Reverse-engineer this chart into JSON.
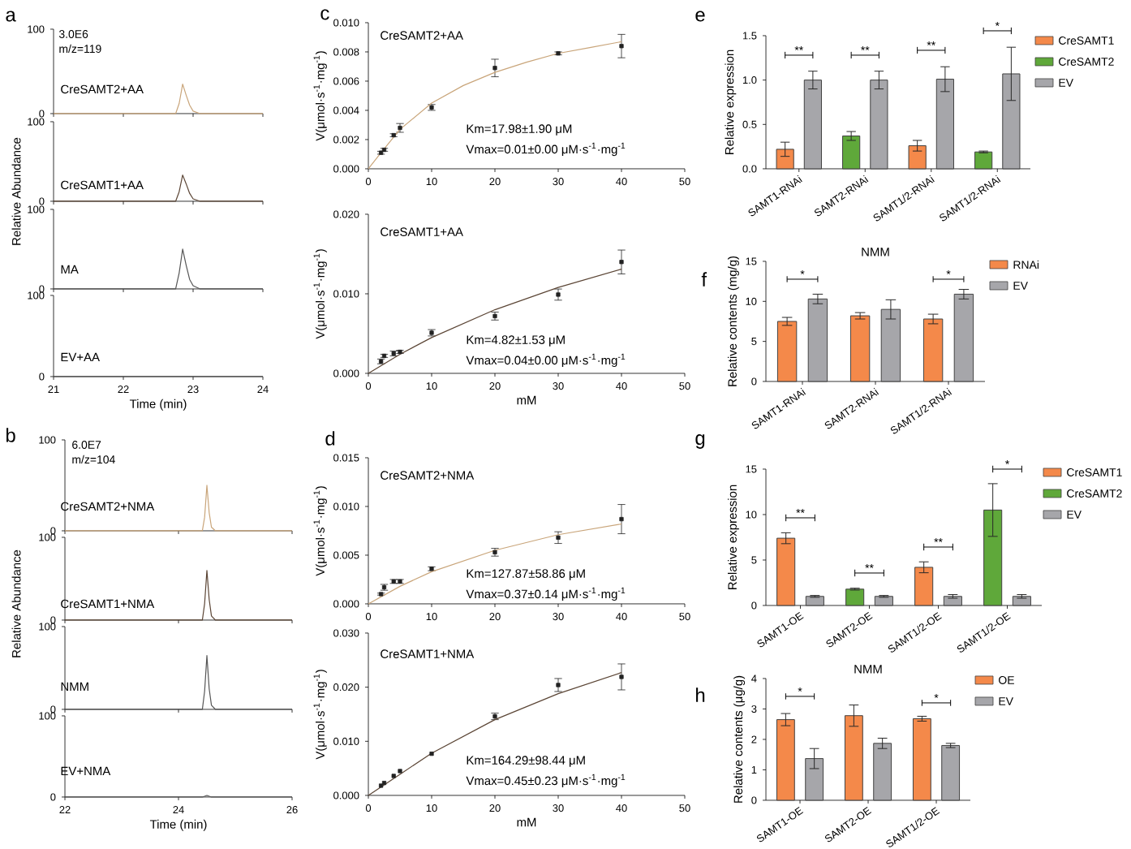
{
  "chart_data": [
    {
      "type": "line",
      "xlim": [
        21,
        24
      ],
      "xticks": [
        21,
        22,
        23,
        24
      ],
      "ylim": [
        0,
        100
      ],
      "yticks": [
        0,
        100
      ],
      "tick_labels": "y",
      "annotations": [
        "a",
        "3.0E6",
        "m/z=119",
        "CreSAMT2+AA"
      ],
      "series": [
        {
          "color": "#c9a57a",
          "x": [
            21,
            22.75,
            22.8,
            22.85,
            22.9,
            22.95,
            23.0,
            23.1,
            24
          ],
          "values": [
            0,
            0,
            12,
            35,
            22,
            10,
            3,
            0,
            0
          ]
        }
      ]
    },
    {
      "type": "line",
      "xlim": [
        21,
        24
      ],
      "xticks": [
        21,
        22,
        23,
        24
      ],
      "ylim": [
        0,
        100
      ],
      "yticks": [
        0,
        100
      ],
      "tick_labels": "y",
      "ylabel": "Relative Abundance",
      "annotations": [
        "CreSAMT1+AA"
      ],
      "series": [
        {
          "color": "#5b4535",
          "x": [
            21,
            22.75,
            22.8,
            22.85,
            22.9,
            22.95,
            23.0,
            23.1,
            24
          ],
          "values": [
            0,
            0,
            12,
            33,
            22,
            10,
            3,
            0,
            0
          ]
        }
      ]
    },
    {
      "type": "line",
      "xlim": [
        21,
        24
      ],
      "xticks": [
        21,
        22,
        23,
        24
      ],
      "ylim": [
        0,
        100
      ],
      "yticks": [
        0,
        100
      ],
      "tick_labels": "y",
      "annotations": [
        "MA"
      ],
      "series": [
        {
          "color": "#555555",
          "x": [
            21,
            22.75,
            22.8,
            22.85,
            22.9,
            22.95,
            23.0,
            23.1,
            24
          ],
          "values": [
            0,
            0,
            20,
            50,
            30,
            12,
            4,
            0,
            0
          ]
        }
      ]
    },
    {
      "type": "line",
      "xlim": [
        21,
        24
      ],
      "xticks": [
        21,
        22,
        23,
        24
      ],
      "ylim": [
        0,
        100
      ],
      "yticks": [
        0,
        100
      ],
      "xlabel": "Time (min)",
      "annotations": [
        "EV+AA"
      ],
      "series": [
        {
          "color": "#555555",
          "x": [
            21,
            22.5,
            24
          ],
          "values": [
            0,
            0,
            0
          ]
        }
      ]
    },
    {
      "type": "scatter",
      "title": "CreSAMT2+AA",
      "ylabel": "V(μmol·s$^{-1}$·mg$^{-1}$)",
      "xlim": [
        0,
        50
      ],
      "xticks": [
        0,
        10,
        20,
        30,
        40,
        50
      ],
      "ylim": [
        0,
        0.01
      ],
      "yticks": [
        {
          "value": 0,
          "label": "0.000"
        },
        {
          "value": 0.002,
          "label": "0.002"
        },
        {
          "value": 0.004,
          "label": "0.004"
        },
        {
          "value": 0.006,
          "label": "0.006"
        },
        {
          "value": 0.008,
          "label": "0.008"
        },
        {
          "value": 0.01,
          "label": "0.010"
        }
      ],
      "annotations": [
        "c",
        "Km=17.98±1.90 μM",
        "Vmax=0.01±0.00 μM·s$^{-1}$·mg$^{-1}$"
      ],
      "series": [
        {
          "type": "scatter",
          "marker": "square",
          "color": "#222222",
          "x": [
            2,
            2.5,
            4,
            5,
            10,
            20,
            30,
            40
          ],
          "values": [
            0.0011,
            0.0013,
            0.0023,
            0.0028,
            0.0042,
            0.0069,
            0.0079,
            0.0084
          ],
          "errors": [
            0.0001,
            0.0001,
            0.0001,
            0.0003,
            0.0002,
            0.0006,
            0.0001,
            0.0008
          ]
        },
        {
          "type": "line",
          "color": "#c9a57a",
          "x": [
            0,
            2,
            5,
            10,
            15,
            20,
            25,
            30,
            35,
            40
          ],
          "values": [
            0,
            0.0011,
            0.0027,
            0.0045,
            0.0057,
            0.0066,
            0.0073,
            0.0079,
            0.0083,
            0.0087
          ]
        }
      ]
    },
    {
      "type": "scatter",
      "title": "CreSAMT1+AA",
      "ylabel": "V(μmol·s$^{-1}$·mg$^{-1}$)",
      "xlabel": "mM",
      "xlim": [
        0,
        50
      ],
      "xticks": [
        0,
        10,
        20,
        30,
        40,
        50
      ],
      "ylim": [
        0,
        0.02
      ],
      "yticks": [
        {
          "value": 0,
          "label": "0.000"
        },
        {
          "value": 0.01,
          "label": "0.010"
        },
        {
          "value": 0.02,
          "label": "0.020"
        }
      ],
      "annotations": [
        "Km=4.82±1.53 μM",
        "Vmax=0.04±0.00 μM·s$^{-1}$·mg$^{-1}$"
      ],
      "series": [
        {
          "type": "scatter",
          "marker": "square",
          "color": "#222222",
          "x": [
            2,
            2.5,
            4,
            5,
            10,
            20,
            30,
            40
          ],
          "values": [
            0.0015,
            0.0022,
            0.0025,
            0.0027,
            0.0051,
            0.0072,
            0.0099,
            0.014
          ],
          "errors": [
            0.0003,
            0.0002,
            0.0003,
            0.0002,
            0.0004,
            0.0005,
            0.0007,
            0.0015
          ]
        },
        {
          "type": "line",
          "color": "#5b4535",
          "x": [
            0,
            5,
            10,
            20,
            30,
            40
          ],
          "values": [
            0,
            0.0024,
            0.0045,
            0.008,
            0.0108,
            0.0131
          ]
        }
      ]
    },
    {
      "type": "bar",
      "ylabel": "Relative expression",
      "ylim": [
        0,
        1.5
      ],
      "yticks": [
        {
          "value": 0,
          "label": "0.0"
        },
        {
          "value": 0.5,
          "label": "0.5"
        },
        {
          "value": 1,
          "label": "1.0"
        },
        {
          "value": 1.5,
          "label": "1.5"
        }
      ],
      "categories": [
        "SAMT1-RNAi",
        "SAMT2-RNAi",
        "SAMT1/2-RNAi",
        "SAMT1/2-RNAi"
      ],
      "legend": "right",
      "annotations": [
        "e",
        "**",
        "**",
        "**",
        "*"
      ],
      "series": [
        {
          "name": "CreSAMT1",
          "color": "#f4894a",
          "values": [
            0.22,
            null,
            0.26,
            null
          ],
          "errors": [
            0.08,
            null,
            0.06,
            null
          ]
        },
        {
          "name": "CreSAMT2",
          "color": "#5fa83a",
          "values": [
            null,
            0.37,
            null,
            0.19
          ],
          "errors": [
            null,
            0.05,
            null,
            0.01
          ]
        },
        {
          "name": "EV",
          "color": "#a6a6aa",
          "values": [
            1.0,
            1.0,
            1.01,
            1.07
          ],
          "errors": [
            0.1,
            0.1,
            0.14,
            0.3
          ]
        }
      ]
    },
    {
      "type": "bar",
      "title": "NMM",
      "ylabel": "Relative contents (mg/g)",
      "ylim": [
        0,
        15
      ],
      "yticks": [
        0,
        5,
        10,
        15
      ],
      "categories": [
        "SAMT1-RNAi",
        "SAMT2-RNAi",
        "SAMT1/2-RNAi"
      ],
      "legend": "right",
      "annotations": [
        "f",
        "*",
        "*"
      ],
      "series": [
        {
          "name": "RNAi",
          "color": "#f4894a",
          "values": [
            7.5,
            8.2,
            7.8
          ],
          "errors": [
            0.5,
            0.4,
            0.6
          ]
        },
        {
          "name": "EV",
          "color": "#a6a6aa",
          "values": [
            10.3,
            9.0,
            10.9
          ],
          "errors": [
            0.6,
            1.2,
            0.6
          ]
        }
      ]
    },
    {
      "type": "line",
      "xlim": [
        22,
        26
      ],
      "xticks": [
        22,
        24,
        26
      ],
      "ylim": [
        0,
        100
      ],
      "yticks": [
        0,
        100
      ],
      "tick_labels": "y",
      "annotations": [
        "b",
        "6.0E7",
        "m/z=104",
        "CreSAMT2+NMA"
      ],
      "series": [
        {
          "color": "#c9a57a",
          "x": [
            22,
            24.42,
            24.46,
            24.5,
            24.54,
            24.58,
            24.65,
            26
          ],
          "values": [
            0,
            0,
            15,
            50,
            20,
            4,
            0,
            0
          ]
        }
      ]
    },
    {
      "type": "line",
      "xlim": [
        22,
        26
      ],
      "xticks": [
        22,
        24,
        26
      ],
      "ylim": [
        0,
        100
      ],
      "yticks": [
        0,
        100
      ],
      "tick_labels": "y",
      "ylabel": "Relative Abundance",
      "annotations": [
        "CreSAMT1+NMA"
      ],
      "series": [
        {
          "color": "#5b4535",
          "x": [
            22,
            24.42,
            24.46,
            24.5,
            24.54,
            24.58,
            24.65,
            26
          ],
          "values": [
            0,
            0,
            20,
            60,
            25,
            5,
            0,
            0
          ]
        }
      ]
    },
    {
      "type": "line",
      "xlim": [
        22,
        26
      ],
      "xticks": [
        22,
        24,
        26
      ],
      "ylim": [
        0,
        100
      ],
      "yticks": [
        0,
        100
      ],
      "tick_labels": "y",
      "annotations": [
        "NMM"
      ],
      "series": [
        {
          "color": "#555555",
          "x": [
            22,
            24.42,
            24.46,
            24.5,
            24.54,
            24.58,
            24.65,
            26
          ],
          "values": [
            0,
            0,
            22,
            65,
            25,
            5,
            0,
            0
          ]
        }
      ]
    },
    {
      "type": "line",
      "xlim": [
        22,
        26
      ],
      "xticks": [
        22,
        24,
        26
      ],
      "ylim": [
        0,
        100
      ],
      "yticks": [
        0,
        100
      ],
      "xlabel": "Time (min)",
      "annotations": [
        "EV+NMA"
      ],
      "series": [
        {
          "color": "#555555",
          "x": [
            22,
            24.42,
            24.5,
            24.58,
            26
          ],
          "values": [
            0,
            0,
            2,
            0,
            0
          ]
        }
      ]
    },
    {
      "type": "scatter",
      "title": "CreSAMT2+NMA",
      "ylabel": "V(μmol·s$^{-1}$·mg$^{-1}$)",
      "xlim": [
        0,
        50
      ],
      "xticks": [
        0,
        10,
        20,
        30,
        40,
        50
      ],
      "ylim": [
        0,
        0.015
      ],
      "yticks": [
        {
          "value": 0,
          "label": "0.000"
        },
        {
          "value": 0.005,
          "label": "0.005"
        },
        {
          "value": 0.01,
          "label": "0.010"
        },
        {
          "value": 0.015,
          "label": "0.015"
        }
      ],
      "annotations": [
        "d",
        "Km=127.87±58.86 μM",
        "Vmax=0.37±0.14 μM·s$^{-1}$·mg$^{-1}$"
      ],
      "series": [
        {
          "type": "scatter",
          "marker": "square",
          "color": "#222222",
          "x": [
            2,
            2.5,
            4,
            5,
            10,
            20,
            30,
            40
          ],
          "values": [
            0.001,
            0.0017,
            0.0023,
            0.0023,
            0.0036,
            0.0053,
            0.0068,
            0.0087
          ],
          "errors": [
            0.0001,
            0.0003,
            0.0002,
            0.0002,
            0.0002,
            0.0004,
            0.0006,
            0.0015
          ]
        },
        {
          "type": "line",
          "color": "#c9a57a",
          "x": [
            0,
            5,
            10,
            20,
            30,
            40
          ],
          "values": [
            0,
            0.0018,
            0.0033,
            0.0055,
            0.0071,
            0.0082
          ]
        }
      ]
    },
    {
      "type": "scatter",
      "title": "CreSAMT1+NMA",
      "ylabel": "V(μmol·s$^{-1}$·mg$^{-1}$)",
      "xlabel": "mM",
      "xlim": [
        0,
        50
      ],
      "xticks": [
        0,
        10,
        20,
        30,
        40,
        50
      ],
      "ylim": [
        0,
        0.03
      ],
      "yticks": [
        {
          "value": 0,
          "label": "0.000"
        },
        {
          "value": 0.01,
          "label": "0.010"
        },
        {
          "value": 0.02,
          "label": "0.020"
        },
        {
          "value": 0.03,
          "label": "0.030"
        }
      ],
      "annotations": [
        "Km=164.29±98.44 μM",
        "Vmax=0.45±0.23 μM·s$^{-1}$·mg$^{-1}$"
      ],
      "series": [
        {
          "type": "scatter",
          "marker": "square",
          "color": "#222222",
          "x": [
            2,
            2.5,
            4,
            5,
            10,
            20,
            30,
            40
          ],
          "values": [
            0.0018,
            0.0023,
            0.0036,
            0.0045,
            0.0077,
            0.0146,
            0.0204,
            0.0219
          ],
          "errors": [
            null,
            null,
            null,
            null,
            null,
            0.0006,
            0.0012,
            0.0024
          ]
        },
        {
          "type": "line",
          "color": "#5b4535",
          "x": [
            0,
            5,
            10,
            20,
            30,
            40
          ],
          "values": [
            0,
            0.0039,
            0.0078,
            0.014,
            0.0188,
            0.0227
          ]
        }
      ]
    },
    {
      "type": "bar",
      "ylabel": "Relative expression",
      "ylim": [
        0,
        15
      ],
      "yticks": [
        0,
        5,
        10,
        15
      ],
      "categories": [
        "SAMT1-OE",
        "SAMT2-OE",
        "SAMT1/2-OE",
        "SAMT1/2-OE"
      ],
      "legend": "right",
      "annotations": [
        "g",
        "**",
        "**",
        "**",
        "*"
      ],
      "series": [
        {
          "name": "CreSAMT1",
          "color": "#f4894a",
          "values": [
            7.4,
            null,
            4.2,
            null
          ],
          "errors": [
            0.6,
            null,
            0.6,
            null
          ]
        },
        {
          "name": "CreSAMT2",
          "color": "#5fa83a",
          "values": [
            null,
            1.8,
            null,
            10.5
          ],
          "errors": [
            null,
            0.1,
            null,
            2.9
          ]
        },
        {
          "name": "EV",
          "color": "#a6a6aa",
          "values": [
            1.0,
            1.0,
            1.0,
            1.0
          ],
          "errors": [
            0.1,
            0.1,
            0.2,
            0.2
          ]
        }
      ]
    },
    {
      "type": "bar",
      "title": "NMM",
      "ylabel": "Relative contents (μg/g)",
      "ylim": [
        0,
        4
      ],
      "yticks": [
        0,
        1,
        2,
        3,
        4
      ],
      "categories": [
        "SAMT1-OE",
        "SAMT2-OE",
        "SAMT1/2-OE"
      ],
      "legend": "right",
      "annotations": [
        "h",
        "*",
        "*"
      ],
      "series": [
        {
          "name": "OE",
          "color": "#f4894a",
          "values": [
            2.65,
            2.78,
            2.68
          ],
          "errors": [
            0.2,
            0.35,
            0.08
          ]
        },
        {
          "name": "EV",
          "color": "#a6a6aa",
          "values": [
            1.37,
            1.87,
            1.8
          ],
          "errors": [
            0.33,
            0.17,
            0.07
          ]
        }
      ]
    }
  ]
}
